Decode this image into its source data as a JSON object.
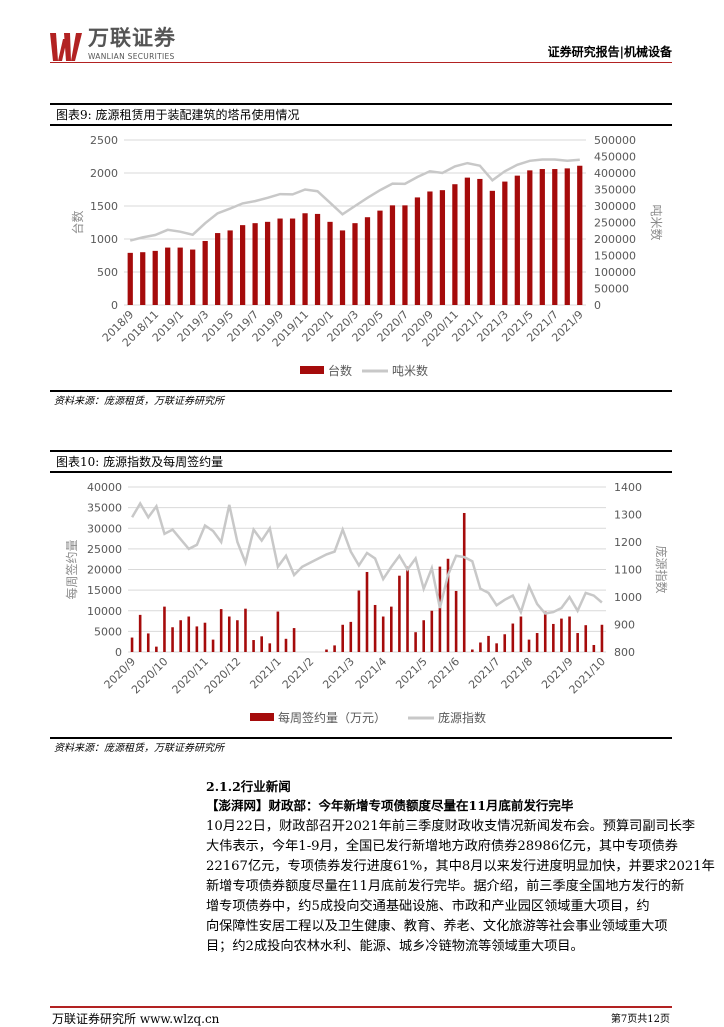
{
  "header": {
    "logo_cn": "万联证券",
    "logo_en": "WANLIAN SECURITIES",
    "report_type": "证券研究报告|机械设备"
  },
  "colors": {
    "bar": "#a50b0b",
    "line": "#c8c8c8",
    "accent": "#b22222"
  },
  "figure9": {
    "title": "图表9:   庞源租赁用于装配建筑的塔吊使用情况",
    "source": "资料来源：庞源租赁，万联证券研究所"
  },
  "figure10": {
    "title": "图表10:  庞源指数及每周签约量",
    "source": "资料来源：庞源租赁，万联证券研究所"
  },
  "chart_data": [
    {
      "type": "bar+line",
      "ylabel": "台数",
      "y2label": "吨米数",
      "ylim": [
        0,
        2500
      ],
      "y2lim": [
        0,
        500000
      ],
      "yticks": [
        "0",
        "500",
        "1000",
        "1500",
        "2000",
        "2500"
      ],
      "y2ticks": [
        "0",
        "50000",
        "100000",
        "150000",
        "200000",
        "250000",
        "300000",
        "350000",
        "400000",
        "450000",
        "500000"
      ],
      "grid": true,
      "legend": "bottom",
      "categories": [
        "2018/9",
        "2018/10",
        "2018/11",
        "2018/12",
        "2019/1",
        "2019/2",
        "2019/3",
        "2019/4",
        "2019/5",
        "2019/6",
        "2019/7",
        "2019/8",
        "2019/9",
        "2019/10",
        "2019/11",
        "2019/12",
        "2020/1",
        "2020/2",
        "2020/3",
        "2020/4",
        "2020/5",
        "2020/6",
        "2020/7",
        "2020/8",
        "2020/9",
        "2020/10",
        "2020/11",
        "2020/12",
        "2021/1",
        "2021/2",
        "2021/3",
        "2021/4",
        "2021/5",
        "2021/6",
        "2021/7",
        "2021/8",
        "2021/9"
      ],
      "tick_labels": [
        "2018/9",
        "2018/11",
        "2019/1",
        "2019/3",
        "2019/5",
        "2019/7",
        "2019/9",
        "2019/11",
        "2020/1",
        "2020/3",
        "2020/5",
        "2020/7",
        "2020/9",
        "2020/11",
        "2021/1",
        "2021/3",
        "2021/5",
        "2021/7",
        "2021/9"
      ],
      "series": [
        {
          "name": "台数",
          "type": "bar",
          "axis": "left",
          "values": [
            790,
            800,
            820,
            870,
            870,
            840,
            970,
            1090,
            1130,
            1210,
            1240,
            1260,
            1310,
            1310,
            1390,
            1380,
            1260,
            1130,
            1240,
            1330,
            1430,
            1510,
            1510,
            1630,
            1720,
            1740,
            1830,
            1930,
            1910,
            1730,
            1870,
            1960,
            2040,
            2060,
            2060,
            2070,
            2110
          ]
        },
        {
          "name": "吨米数",
          "type": "line",
          "axis": "right",
          "values": [
            195000,
            205000,
            212000,
            228000,
            222000,
            213000,
            248000,
            278000,
            292000,
            308000,
            315000,
            325000,
            336000,
            335000,
            350000,
            345000,
            310000,
            275000,
            300000,
            325000,
            348000,
            368000,
            367000,
            388000,
            405000,
            400000,
            420000,
            430000,
            422000,
            378000,
            405000,
            425000,
            437000,
            441000,
            441000,
            437000,
            440000
          ]
        }
      ]
    },
    {
      "type": "bar+line",
      "ylabel": "每周签约量",
      "y2label": "庞源指数",
      "ylim": [
        0,
        40000
      ],
      "y2lim": [
        800,
        1400
      ],
      "yticks": [
        "0",
        "5000",
        "10000",
        "15000",
        "20000",
        "25000",
        "30000",
        "35000",
        "40000"
      ],
      "y2ticks": [
        "800",
        "900",
        "1000",
        "1100",
        "1200",
        "1300",
        "1400"
      ],
      "grid": true,
      "legend": "bottom",
      "tick_labels": [
        "2020/9",
        "2020/10",
        "2020/11",
        "2020/12",
        "2021/1",
        "2021/2",
        "2021/3",
        "2021/4",
        "2021/5",
        "2021/6",
        "2021/7",
        "2021/8",
        "2021/9",
        "2021/10"
      ],
      "series": [
        {
          "name": "每周签约量（万元）",
          "type": "bar",
          "axis": "left",
          "values": [
            3500,
            9000,
            4500,
            1300,
            11000,
            6000,
            7700,
            8600,
            6200,
            7100,
            3000,
            10400,
            8600,
            7700,
            10500,
            2900,
            3800,
            2100,
            9800,
            3200,
            5800,
            0,
            0,
            0,
            600,
            1600,
            6600,
            7300,
            14900,
            19400,
            11400,
            8600,
            11000,
            18500,
            20700,
            4800,
            7700,
            10000,
            20700,
            22600,
            14800,
            33700,
            600,
            2300,
            3900,
            2100,
            4300,
            6900,
            8600,
            3000,
            4600,
            9800,
            6800,
            8100,
            8600,
            4600,
            6500,
            1700,
            6600
          ]
        },
        {
          "name": "庞源指数",
          "type": "line",
          "axis": "right",
          "values": [
            1290,
            1340,
            1290,
            1330,
            1230,
            1245,
            1210,
            1175,
            1190,
            1260,
            1240,
            1200,
            1335,
            1200,
            1125,
            1245,
            1205,
            1250,
            1110,
            1150,
            1080,
            1110,
            1125,
            1140,
            1155,
            1165,
            1245,
            1165,
            1115,
            1160,
            1140,
            1065,
            1110,
            1150,
            1100,
            1140,
            1030,
            1105,
            960,
            1080,
            1150,
            1145,
            1130,
            1030,
            1015,
            970,
            990,
            1005,
            945,
            1040,
            975,
            940,
            945,
            960,
            1000,
            950,
            1015,
            1005,
            980
          ]
        }
      ]
    }
  ],
  "news": {
    "section": "2.1.2行业新闻",
    "headline": "【澎湃网】财政部：今年新增专项债额度尽量在11月底前发行完毕",
    "lines": [
      "10月22日，财政部召开2021年前三季度财政收支情况新闻发布会。预算司副司长李",
      "大伟表示，今年1-9月，全国已发行新增地方政府债券28986亿元，其中专项债券",
      "22167亿元，专项债券发行进度61%，其中8月以来发行进度明显加快，并要求2021年",
      "新增专项债券额度尽量在11月底前发行完毕。据介绍，前三季度全国地方发行的新",
      "增专项债券中，约5成投向交通基础设施、市政和产业园区领域重大项目，约",
      "向保障性安居工程以及卫生健康、教育、养老、文化旅游等社会事业领域重大项",
      "目；约2成投向农林水利、能源、城乡冷链物流等领域重大项目。"
    ]
  },
  "footer": {
    "org": "万联证券研究所 www.wlzq.cn",
    "page": "第7页共12页"
  }
}
